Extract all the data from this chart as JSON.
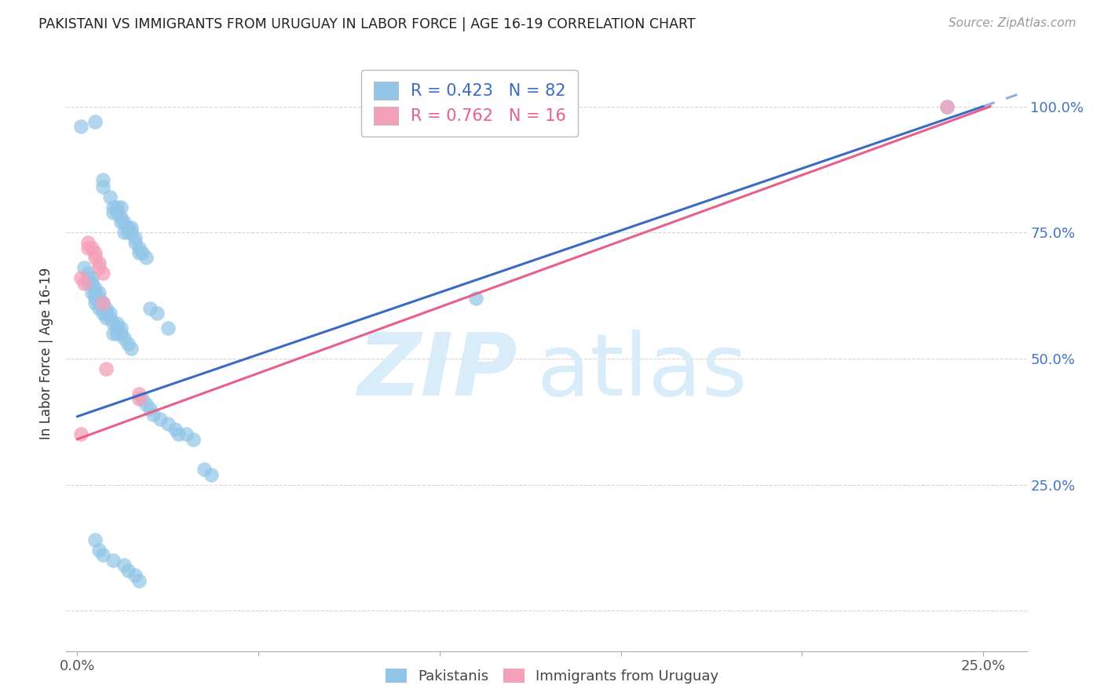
{
  "title": "PAKISTANI VS IMMIGRANTS FROM URUGUAY IN LABOR FORCE | AGE 16-19 CORRELATION CHART",
  "source": "Source: ZipAtlas.com",
  "ylabel": "In Labor Force | Age 16-19",
  "xlim": [
    -0.003,
    0.262
  ],
  "ylim": [
    -0.08,
    1.1
  ],
  "blue_R": 0.423,
  "blue_N": 82,
  "pink_R": 0.762,
  "pink_N": 16,
  "blue_color": "#92C5E8",
  "pink_color": "#F4A0B8",
  "blue_line_color": "#3A6BC4",
  "pink_line_color": "#E8608A",
  "legend_blue_color": "#3A6BC4",
  "legend_pink_color": "#E8608A",
  "right_tick_color": "#4472C4",
  "grid_color": "#CCCCCC",
  "background_color": "#FFFFFF",
  "watermark_zip": "ZIP",
  "watermark_atlas": "atlas",
  "watermark_color": "#D8ECFA",
  "blue_line": [
    [
      0.0,
      0.385
    ],
    [
      0.25,
      1.0
    ]
  ],
  "blue_line_dashed": [
    [
      0.25,
      1.0
    ],
    [
      0.262,
      1.03
    ]
  ],
  "pink_line": [
    [
      0.0,
      0.34
    ],
    [
      0.252,
      1.0
    ]
  ],
  "blue_scatter": [
    [
      0.001,
      0.96
    ],
    [
      0.005,
      0.97
    ],
    [
      0.007,
      0.855
    ],
    [
      0.007,
      0.84
    ],
    [
      0.009,
      0.82
    ],
    [
      0.01,
      0.8
    ],
    [
      0.01,
      0.79
    ],
    [
      0.011,
      0.8
    ],
    [
      0.011,
      0.79
    ],
    [
      0.012,
      0.8
    ],
    [
      0.012,
      0.78
    ],
    [
      0.012,
      0.77
    ],
    [
      0.013,
      0.77
    ],
    [
      0.013,
      0.75
    ],
    [
      0.014,
      0.76
    ],
    [
      0.014,
      0.75
    ],
    [
      0.015,
      0.76
    ],
    [
      0.015,
      0.75
    ],
    [
      0.016,
      0.73
    ],
    [
      0.016,
      0.74
    ],
    [
      0.017,
      0.72
    ],
    [
      0.017,
      0.71
    ],
    [
      0.018,
      0.71
    ],
    [
      0.019,
      0.7
    ],
    [
      0.002,
      0.68
    ],
    [
      0.003,
      0.67
    ],
    [
      0.003,
      0.66
    ],
    [
      0.003,
      0.65
    ],
    [
      0.004,
      0.66
    ],
    [
      0.004,
      0.65
    ],
    [
      0.004,
      0.63
    ],
    [
      0.005,
      0.64
    ],
    [
      0.005,
      0.63
    ],
    [
      0.005,
      0.62
    ],
    [
      0.005,
      0.61
    ],
    [
      0.006,
      0.63
    ],
    [
      0.006,
      0.62
    ],
    [
      0.006,
      0.61
    ],
    [
      0.006,
      0.6
    ],
    [
      0.007,
      0.61
    ],
    [
      0.007,
      0.6
    ],
    [
      0.007,
      0.59
    ],
    [
      0.008,
      0.6
    ],
    [
      0.008,
      0.59
    ],
    [
      0.008,
      0.58
    ],
    [
      0.009,
      0.59
    ],
    [
      0.009,
      0.58
    ],
    [
      0.01,
      0.57
    ],
    [
      0.01,
      0.55
    ],
    [
      0.011,
      0.57
    ],
    [
      0.011,
      0.56
    ],
    [
      0.011,
      0.55
    ],
    [
      0.012,
      0.56
    ],
    [
      0.012,
      0.55
    ],
    [
      0.013,
      0.54
    ],
    [
      0.014,
      0.53
    ],
    [
      0.015,
      0.52
    ],
    [
      0.02,
      0.6
    ],
    [
      0.022,
      0.59
    ],
    [
      0.025,
      0.56
    ],
    [
      0.018,
      0.42
    ],
    [
      0.019,
      0.41
    ],
    [
      0.02,
      0.4
    ],
    [
      0.021,
      0.39
    ],
    [
      0.023,
      0.38
    ],
    [
      0.025,
      0.37
    ],
    [
      0.027,
      0.36
    ],
    [
      0.028,
      0.35
    ],
    [
      0.03,
      0.35
    ],
    [
      0.032,
      0.34
    ],
    [
      0.035,
      0.28
    ],
    [
      0.037,
      0.27
    ],
    [
      0.005,
      0.14
    ],
    [
      0.006,
      0.12
    ],
    [
      0.007,
      0.11
    ],
    [
      0.01,
      0.1
    ],
    [
      0.013,
      0.09
    ],
    [
      0.014,
      0.08
    ],
    [
      0.016,
      0.07
    ],
    [
      0.017,
      0.06
    ],
    [
      0.11,
      0.62
    ],
    [
      0.24,
      1.0
    ]
  ],
  "pink_scatter": [
    [
      0.001,
      0.66
    ],
    [
      0.002,
      0.65
    ],
    [
      0.003,
      0.73
    ],
    [
      0.003,
      0.72
    ],
    [
      0.004,
      0.72
    ],
    [
      0.005,
      0.71
    ],
    [
      0.005,
      0.7
    ],
    [
      0.006,
      0.69
    ],
    [
      0.006,
      0.68
    ],
    [
      0.007,
      0.67
    ],
    [
      0.007,
      0.61
    ],
    [
      0.008,
      0.48
    ],
    [
      0.017,
      0.43
    ],
    [
      0.017,
      0.42
    ],
    [
      0.001,
      0.35
    ],
    [
      0.24,
      1.0
    ]
  ],
  "x_tick_positions": [
    0.0,
    0.05,
    0.1,
    0.15,
    0.2,
    0.25
  ],
  "x_tick_labels": [
    "0.0%",
    "",
    "",
    "",
    "",
    "25.0%"
  ],
  "y_tick_positions": [
    0.0,
    0.25,
    0.5,
    0.75,
    1.0
  ],
  "y_tick_labels_right": [
    "",
    "25.0%",
    "50.0%",
    "75.0%",
    "100.0%"
  ]
}
